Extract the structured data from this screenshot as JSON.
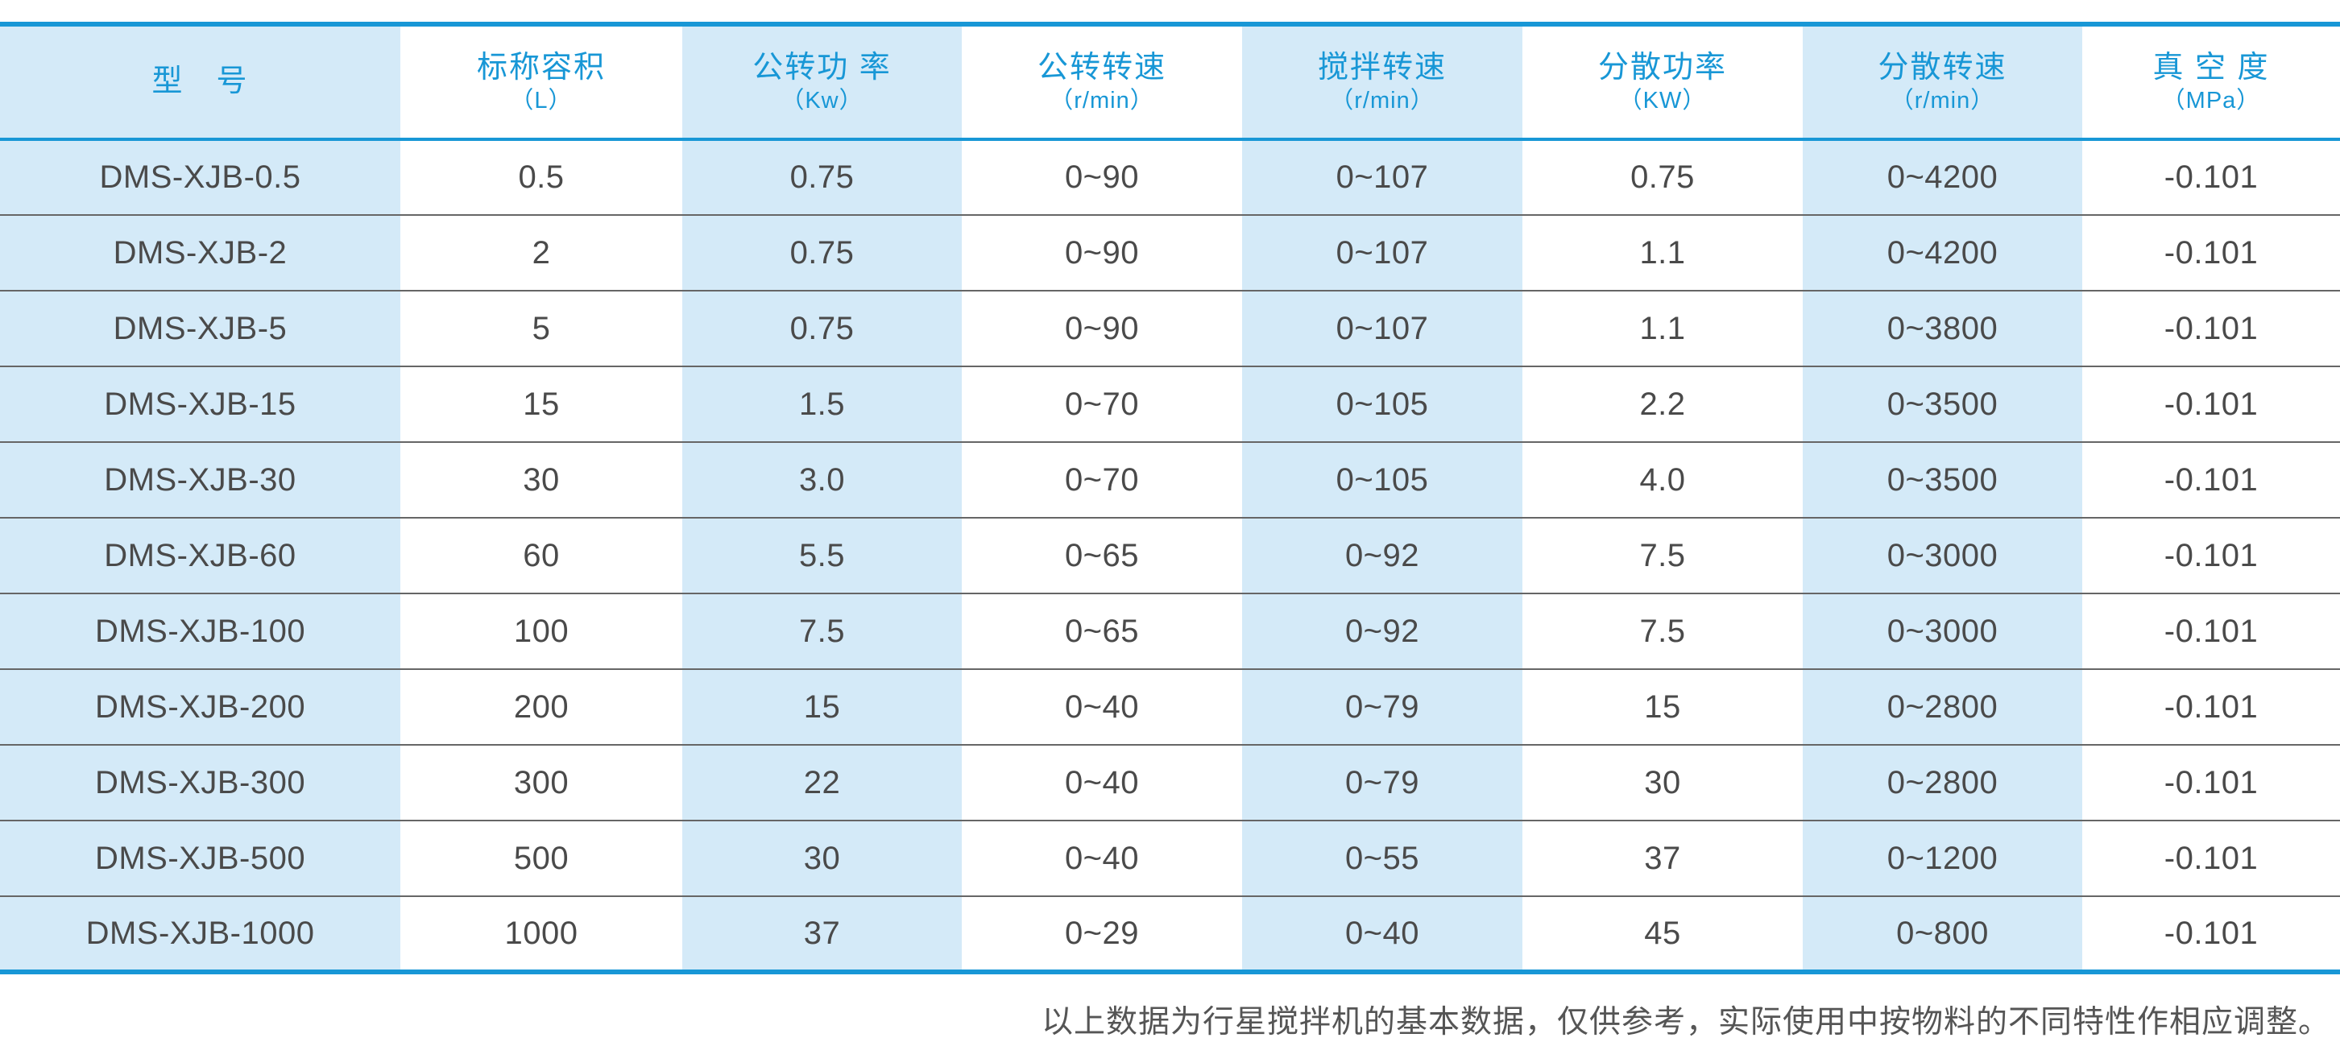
{
  "table": {
    "columns": [
      {
        "name": "型　号",
        "unit": ""
      },
      {
        "name": "标称容积",
        "unit": "（L）"
      },
      {
        "name": "公转功 率",
        "unit": "（Kw）"
      },
      {
        "name": "公转转速",
        "unit": "（r/min）"
      },
      {
        "name": "搅拌转速",
        "unit": "（r/min）"
      },
      {
        "name": "分散功率",
        "unit": "（KW）"
      },
      {
        "name": "分散转速",
        "unit": "（r/min）"
      },
      {
        "name": "真 空 度",
        "unit": "（MPa）"
      }
    ],
    "rows": [
      [
        "DMS-XJB-0.5",
        "0.5",
        "0.75",
        "0~90",
        "0~107",
        "0.75",
        "0~4200",
        "-0.101"
      ],
      [
        "DMS-XJB-2",
        "2",
        "0.75",
        "0~90",
        "0~107",
        "1.1",
        "0~4200",
        "-0.101"
      ],
      [
        "DMS-XJB-5",
        "5",
        "0.75",
        "0~90",
        "0~107",
        "1.1",
        "0~3800",
        "-0.101"
      ],
      [
        "DMS-XJB-15",
        "15",
        "1.5",
        "0~70",
        "0~105",
        "2.2",
        "0~3500",
        "-0.101"
      ],
      [
        "DMS-XJB-30",
        "30",
        "3.0",
        "0~70",
        "0~105",
        "4.0",
        "0~3500",
        "-0.101"
      ],
      [
        "DMS-XJB-60",
        "60",
        "5.5",
        "0~65",
        "0~92",
        "7.5",
        "0~3000",
        "-0.101"
      ],
      [
        "DMS-XJB-100",
        "100",
        "7.5",
        "0~65",
        "0~92",
        "7.5",
        "0~3000",
        "-0.101"
      ],
      [
        "DMS-XJB-200",
        "200",
        "15",
        "0~40",
        "0~79",
        "15",
        "0~2800",
        "-0.101"
      ],
      [
        "DMS-XJB-300",
        "300",
        "22",
        "0~40",
        "0~79",
        "30",
        "0~2800",
        "-0.101"
      ],
      [
        "DMS-XJB-500",
        "500",
        "30",
        "0~40",
        "0~55",
        "37",
        "0~1200",
        "-0.101"
      ],
      [
        "DMS-XJB-1000",
        "1000",
        "37",
        "0~29",
        "0~40",
        "45",
        "0~800",
        "-0.101"
      ]
    ]
  },
  "footnote": "以上数据为行星搅拌机的基本数据，仅供参考，实际使用中按物料的不同特性作相应调整。",
  "colors": {
    "accent_blue": "#1897d6",
    "stripe_light_blue": "#d4eaf8",
    "body_text": "#4a4a4a",
    "row_separator": "#666666",
    "footnote_text": "#555555"
  }
}
